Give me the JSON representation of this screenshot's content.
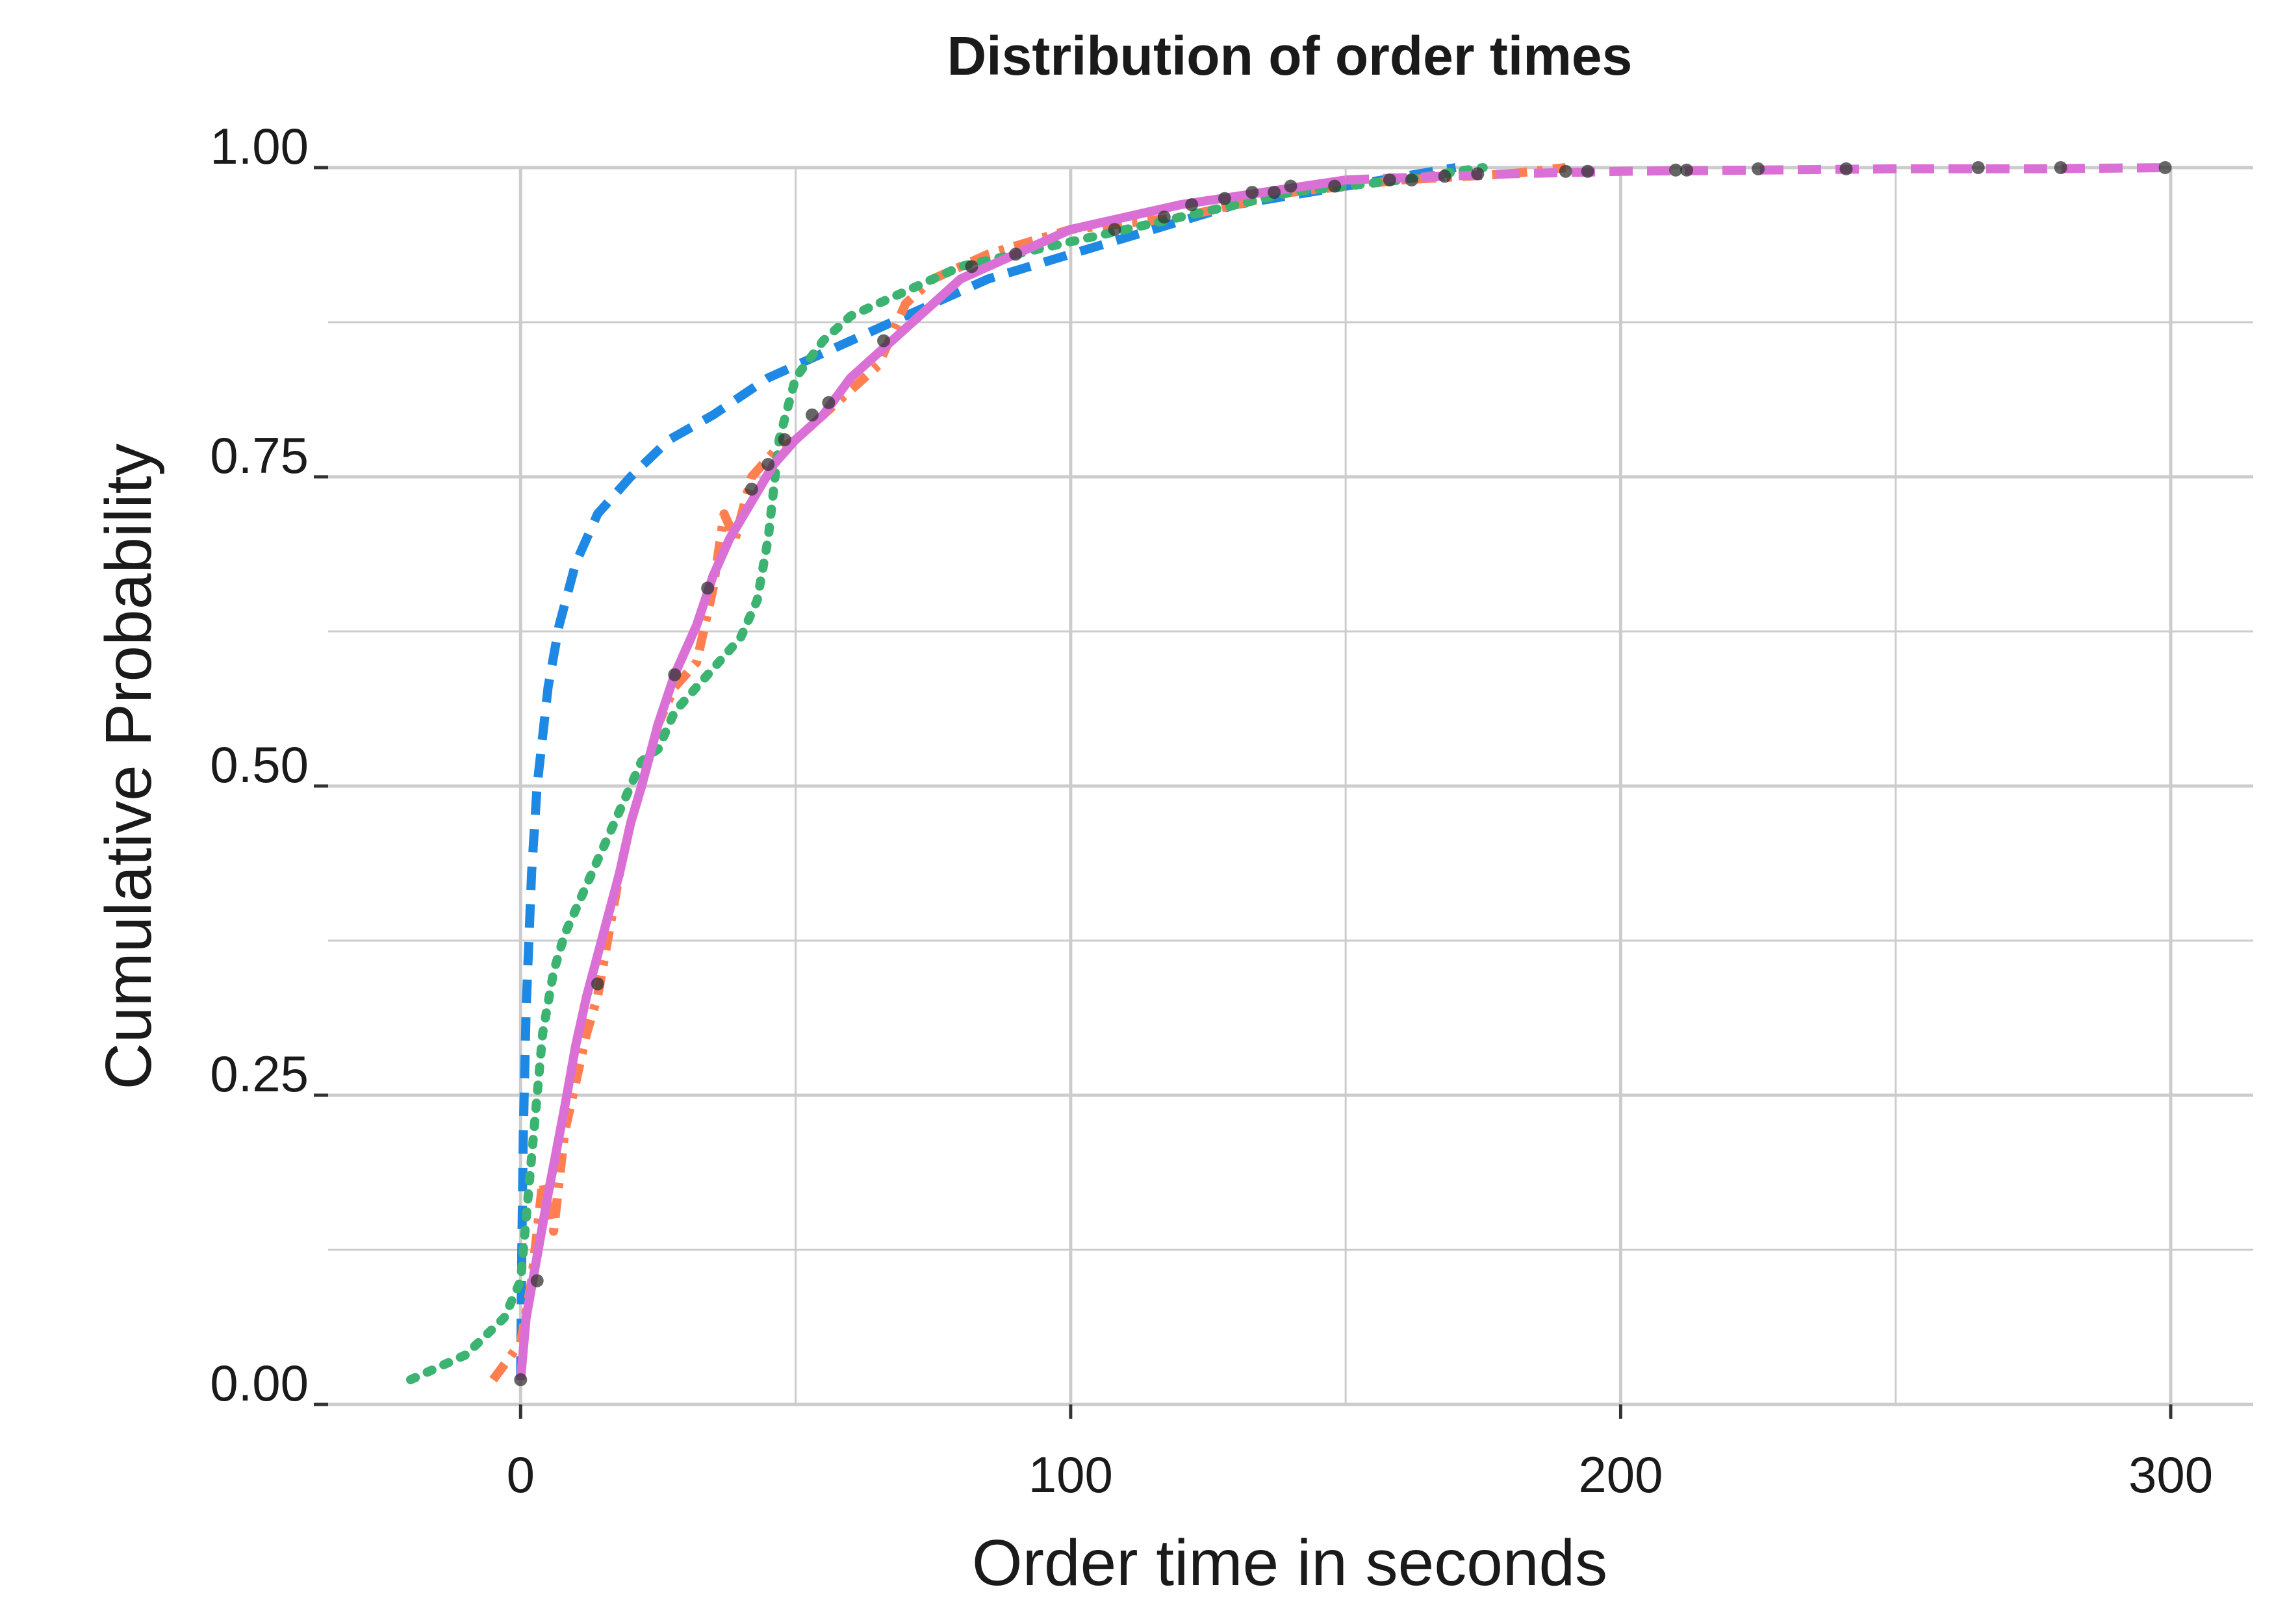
{
  "chart_data": {
    "type": "line",
    "title": "Distribution of order times",
    "xlabel": "Order time in seconds",
    "ylabel": "Cumulative Probability",
    "xlim": [
      -35,
      315
    ],
    "ylim": [
      0,
      1
    ],
    "x_ticks": [
      0,
      100,
      200,
      300
    ],
    "x_tick_labels": [
      "0",
      "100",
      "200",
      "300"
    ],
    "y_ticks": [
      0,
      0.25,
      0.5,
      0.75,
      1.0
    ],
    "y_tick_labels": [
      "0.00",
      "0.25",
      "0.50",
      "0.75",
      "1.00"
    ],
    "grid": true,
    "legend": "none",
    "colors": {
      "empirical": "#333333",
      "blue": "#1e88e5",
      "orange": "#ff7f50",
      "green": "#3cb371",
      "violet": "#da70d6",
      "grid": "#cccccc"
    },
    "series": [
      {
        "color": "#1e88e5",
        "dash": "dashed",
        "x": [
          0,
          0.2,
          0.5,
          1,
          2,
          3,
          5,
          7,
          10,
          14,
          20,
          27,
          35,
          45,
          55,
          65,
          75,
          85,
          100,
          115,
          130,
          150,
          170
        ],
        "y": [
          0.02,
          0.12,
          0.22,
          0.32,
          0.43,
          0.5,
          0.58,
          0.63,
          0.68,
          0.72,
          0.75,
          0.78,
          0.8,
          0.83,
          0.85,
          0.87,
          0.89,
          0.91,
          0.93,
          0.95,
          0.97,
          0.985,
          1.0
        ]
      },
      {
        "color": "#ff7f50",
        "dash": "dashdot",
        "x": [
          -5,
          0,
          2,
          4,
          6,
          8,
          10,
          12,
          14,
          16,
          18,
          20,
          22,
          25,
          28,
          32,
          35,
          37,
          39,
          42,
          46,
          50,
          55,
          60,
          65,
          68,
          70,
          75,
          85,
          100,
          120,
          140,
          160,
          180,
          190
        ],
        "y": [
          0.02,
          0.05,
          0.1,
          0.18,
          0.14,
          0.22,
          0.26,
          0.3,
          0.33,
          0.38,
          0.43,
          0.47,
          0.5,
          0.55,
          0.58,
          0.6,
          0.66,
          0.72,
          0.7,
          0.75,
          0.77,
          0.78,
          0.8,
          0.82,
          0.84,
          0.87,
          0.89,
          0.91,
          0.93,
          0.95,
          0.96,
          0.98,
          0.99,
          0.995,
          1.0
        ]
      },
      {
        "color": "#3cb371",
        "dash": "dotted",
        "x": [
          -20,
          -10,
          -3,
          0,
          2,
          4,
          6,
          8,
          10,
          12,
          14,
          16,
          18,
          20,
          22,
          25,
          28,
          32,
          36,
          40,
          43,
          45,
          47,
          50,
          55,
          60,
          65,
          70,
          75,
          80,
          90,
          100,
          120,
          140,
          160,
          175
        ],
        "y": [
          0.02,
          0.04,
          0.07,
          0.1,
          0.2,
          0.3,
          0.35,
          0.38,
          0.4,
          0.42,
          0.44,
          0.46,
          0.48,
          0.5,
          0.52,
          0.53,
          0.56,
          0.58,
          0.6,
          0.62,
          0.65,
          0.7,
          0.78,
          0.83,
          0.86,
          0.88,
          0.89,
          0.9,
          0.91,
          0.92,
          0.93,
          0.94,
          0.96,
          0.98,
          0.99,
          1.0
        ]
      },
      {
        "color": "#da70d6",
        "dash": "solid",
        "x": [
          0,
          1,
          3,
          5,
          8,
          10,
          12,
          15,
          18,
          20,
          22,
          25,
          28,
          32,
          35,
          38,
          42,
          46,
          50,
          55,
          60,
          65,
          70,
          75,
          80,
          90,
          100,
          110,
          120,
          135,
          150
        ],
        "y": [
          0.02,
          0.07,
          0.12,
          0.17,
          0.24,
          0.29,
          0.33,
          0.38,
          0.43,
          0.47,
          0.5,
          0.55,
          0.59,
          0.63,
          0.67,
          0.7,
          0.73,
          0.76,
          0.78,
          0.8,
          0.83,
          0.85,
          0.87,
          0.89,
          0.91,
          0.93,
          0.95,
          0.96,
          0.97,
          0.98,
          0.99
        ]
      },
      {
        "color": "#da70d6",
        "dash": "dashed",
        "x": [
          150,
          180,
          200,
          225,
          250,
          275,
          300
        ],
        "y": [
          0.99,
          0.995,
          0.997,
          0.998,
          0.999,
          0.999,
          1.0
        ]
      }
    ],
    "points": {
      "color": "#333333",
      "x": [
        0,
        3,
        14,
        28,
        34,
        42,
        45,
        48,
        53,
        56,
        66,
        82,
        90,
        108,
        117,
        122,
        128,
        133,
        137,
        140,
        148,
        158,
        162,
        168,
        174,
        190,
        194,
        210,
        212,
        225,
        241,
        265,
        280,
        299
      ],
      "y": [
        0.02,
        0.1,
        0.34,
        0.59,
        0.66,
        0.74,
        0.76,
        0.78,
        0.8,
        0.81,
        0.86,
        0.92,
        0.93,
        0.95,
        0.96,
        0.97,
        0.975,
        0.98,
        0.98,
        0.985,
        0.985,
        0.99,
        0.99,
        0.993,
        0.995,
        0.997,
        0.997,
        0.998,
        0.998,
        0.999,
        0.999,
        1.0,
        1.0,
        1.0
      ]
    }
  }
}
